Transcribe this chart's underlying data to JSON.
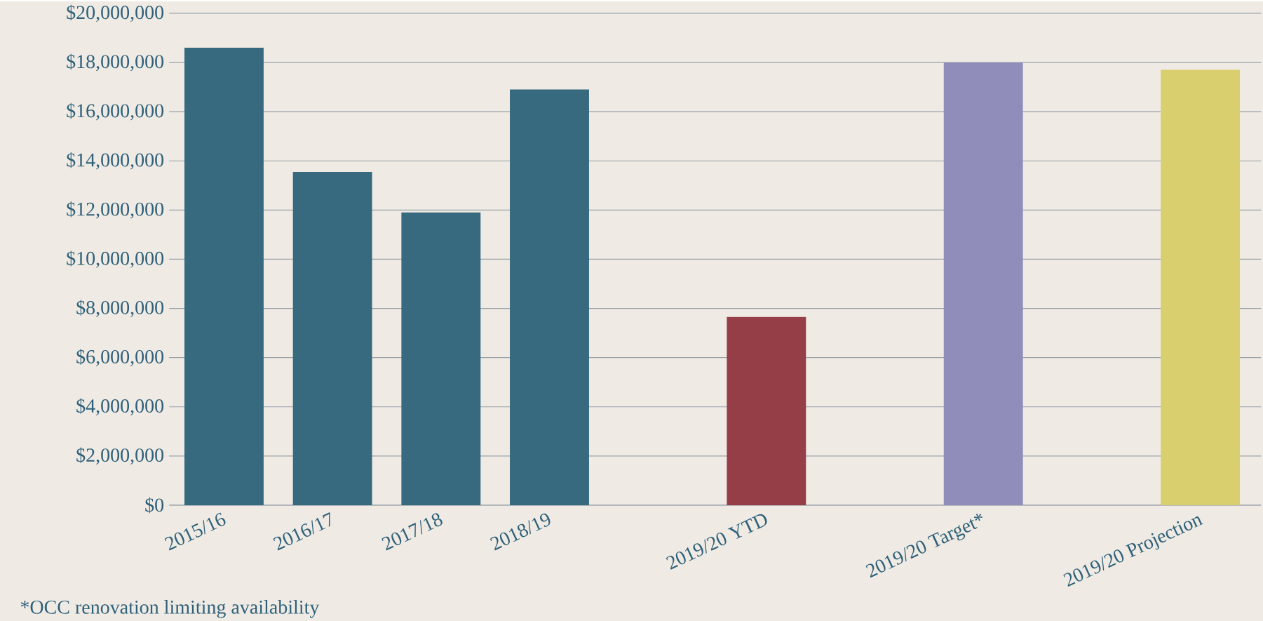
{
  "chart_data": {
    "type": "bar",
    "categories": [
      "2015/16",
      "2016/17",
      "2017/18",
      "2018/19",
      null,
      "2019/20 YTD",
      null,
      "2019/20 Target*",
      null,
      "2019/20 Projection"
    ],
    "values": [
      18600000,
      13550000,
      11900000,
      16900000,
      null,
      7650000,
      null,
      18000000,
      null,
      17700000
    ],
    "colors": [
      "#376a7e",
      "#376a7e",
      "#376a7e",
      "#376a7e",
      null,
      "#963e48",
      null,
      "#918dbb",
      null,
      "#d9cf6e"
    ],
    "ylim": [
      0,
      20000000
    ],
    "yticks": [
      {
        "value": 0,
        "label": "$0"
      },
      {
        "value": 2000000,
        "label": "$2,000,000"
      },
      {
        "value": 4000000,
        "label": "$4,000,000"
      },
      {
        "value": 6000000,
        "label": "$6,000,000"
      },
      {
        "value": 8000000,
        "label": "$8,000,000"
      },
      {
        "value": 10000000,
        "label": "$10,000,000"
      },
      {
        "value": 12000000,
        "label": "$12,000,000"
      },
      {
        "value": 14000000,
        "label": "$14,000,000"
      },
      {
        "value": 16000000,
        "label": "$16,000,000"
      },
      {
        "value": 18000000,
        "label": "$18,000,000"
      },
      {
        "value": 20000000,
        "label": "$20,000,000"
      }
    ],
    "grid": "y",
    "annotations": [
      "*OCC renovation limiting availability"
    ]
  }
}
